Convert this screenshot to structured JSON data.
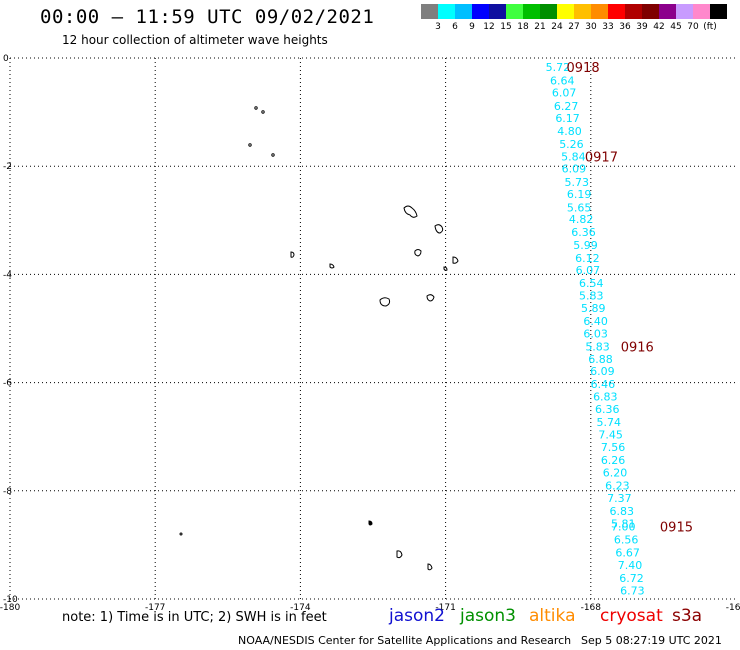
{
  "header": {
    "title": "00:00 – 11:59 UTC 09/02/2021",
    "subtitle": "12 hour collection of altimeter wave heights"
  },
  "colorbar": {
    "colors": [
      "#7f7f7f",
      "#00ffff",
      "#00bfff",
      "#0000ff",
      "#0f0fa0",
      "#3fff3f",
      "#00bf00",
      "#008f00",
      "#ffff00",
      "#ffbf00",
      "#ff8c00",
      "#ff0000",
      "#b00000",
      "#7f0000",
      "#8c008c",
      "#c89bff",
      "#ff88cc",
      "#000000"
    ],
    "labels": [
      "3",
      "6",
      "9",
      "12",
      "15",
      "18",
      "21",
      "24",
      "27",
      "30",
      "33",
      "36",
      "39",
      "42",
      "45",
      "70",
      "(ft)"
    ]
  },
  "axes": {
    "x_ticks": [
      "-180",
      "-177",
      "-174",
      "-171",
      "-168",
      "-165"
    ],
    "y_ticks": [
      "0",
      "-2",
      "-4",
      "-6",
      "-8",
      "-10"
    ]
  },
  "chart_data": {
    "type": "scatter",
    "title": "00:00 – 11:59 UTC 09/02/2021",
    "xlim": [
      -180,
      -165
    ],
    "ylim": [
      -10,
      0
    ],
    "grid": true,
    "series": [
      {
        "name": "cryosat",
        "color": "#00e0ff",
        "points": [
          {
            "lon": -168.68,
            "lat": -0.17,
            "swh": "5.72"
          },
          {
            "lon": -168.59,
            "lat": -0.42,
            "swh": "6.64"
          },
          {
            "lon": -168.55,
            "lat": -0.64,
            "swh": "6.07"
          },
          {
            "lon": -168.51,
            "lat": -0.89,
            "swh": "6.27"
          },
          {
            "lon": -168.48,
            "lat": -1.11,
            "swh": "6.17"
          },
          {
            "lon": -168.44,
            "lat": -1.35,
            "swh": "4.80"
          },
          {
            "lon": -168.4,
            "lat": -1.59,
            "swh": "5.26"
          },
          {
            "lon": -168.36,
            "lat": -1.82,
            "swh": "5.84"
          },
          {
            "lon": -168.35,
            "lat": -2.04,
            "swh": "6.09"
          },
          {
            "lon": -168.29,
            "lat": -2.29,
            "swh": "5.73"
          },
          {
            "lon": -168.24,
            "lat": -2.51,
            "swh": "6.19"
          },
          {
            "lon": -168.24,
            "lat": -2.76,
            "swh": "5.65"
          },
          {
            "lon": -168.2,
            "lat": -2.98,
            "swh": "4.82"
          },
          {
            "lon": -168.15,
            "lat": -3.22,
            "swh": "6.36"
          },
          {
            "lon": -168.11,
            "lat": -3.46,
            "swh": "5.99"
          },
          {
            "lon": -168.07,
            "lat": -3.7,
            "swh": "6.12"
          },
          {
            "lon": -168.06,
            "lat": -3.92,
            "swh": "6.07"
          },
          {
            "lon": -167.99,
            "lat": -4.16,
            "swh": "6.54"
          },
          {
            "lon": -167.99,
            "lat": -4.39,
            "swh": "5.83"
          },
          {
            "lon": -167.95,
            "lat": -4.62,
            "swh": "5.89"
          },
          {
            "lon": -167.9,
            "lat": -4.86,
            "swh": "6.40"
          },
          {
            "lon": -167.9,
            "lat": -5.09,
            "swh": "6.03"
          },
          {
            "lon": -167.86,
            "lat": -5.33,
            "swh": "5.83"
          },
          {
            "lon": -167.8,
            "lat": -5.56,
            "swh": "6.88"
          },
          {
            "lon": -167.76,
            "lat": -5.79,
            "swh": "6.09"
          },
          {
            "lon": -167.75,
            "lat": -6.03,
            "swh": "6.46"
          },
          {
            "lon": -167.7,
            "lat": -6.26,
            "swh": "6.83"
          },
          {
            "lon": -167.66,
            "lat": -6.49,
            "swh": "6.36"
          },
          {
            "lon": -167.63,
            "lat": -6.73,
            "swh": "5.74"
          },
          {
            "lon": -167.59,
            "lat": -6.96,
            "swh": "7.45"
          },
          {
            "lon": -167.54,
            "lat": -7.19,
            "swh": "7.56"
          },
          {
            "lon": -167.54,
            "lat": -7.43,
            "swh": "6.26"
          },
          {
            "lon": -167.5,
            "lat": -7.66,
            "swh": "6.20"
          },
          {
            "lon": -167.45,
            "lat": -7.9,
            "swh": "6.23"
          },
          {
            "lon": -167.41,
            "lat": -8.13,
            "swh": "7.37"
          },
          {
            "lon": -167.36,
            "lat": -8.37,
            "swh": "6.83"
          },
          {
            "lon": -167.33,
            "lat": -8.6,
            "swh": "5.81"
          },
          {
            "lon": -167.33,
            "lat": -8.66,
            "swh": "7.00"
          },
          {
            "lon": -167.27,
            "lat": -8.9,
            "swh": "6.56"
          },
          {
            "lon": -167.24,
            "lat": -9.14,
            "swh": "6.67"
          },
          {
            "lon": -167.19,
            "lat": -9.37,
            "swh": "7.40"
          },
          {
            "lon": -167.16,
            "lat": -9.61,
            "swh": "6.72"
          },
          {
            "lon": -167.14,
            "lat": -9.84,
            "swh": "6.73"
          }
        ]
      }
    ],
    "time_labels": [
      {
        "text": "0918",
        "lon": -168.16,
        "lat": -0.17
      },
      {
        "text": "0917",
        "lon": -167.78,
        "lat": -1.82
      },
      {
        "text": "0916",
        "lon": -167.04,
        "lat": -5.33
      },
      {
        "text": "0915",
        "lon": -166.23,
        "lat": -8.66
      }
    ]
  },
  "footer": {
    "note": "note: 1) Time is in UTC; 2) SWH is in feet",
    "satellites": [
      {
        "name": "jason2",
        "color": "#1010d0"
      },
      {
        "name": "jason3",
        "color": "#009000"
      },
      {
        "name": "altika",
        "color": "#ff8c00"
      },
      {
        "name": "cryosat",
        "color": "#ee0000"
      },
      {
        "name": "s3a",
        "color": "#8b0000"
      }
    ],
    "credit": "NOAA/NESDIS Center for Satellite Applications and Research",
    "timestamp": "Sep  5 08:27:19 UTC 2021"
  }
}
